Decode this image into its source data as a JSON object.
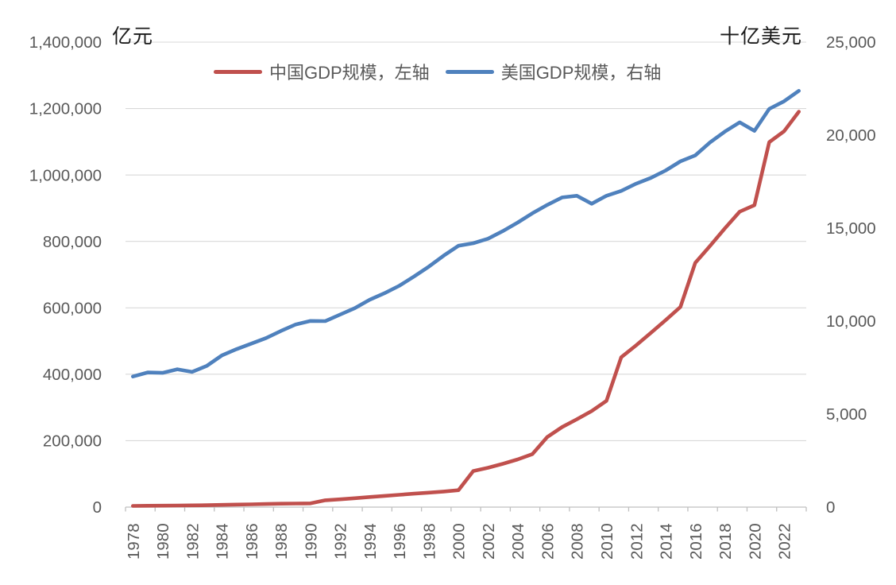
{
  "chart_data": {
    "type": "line",
    "title": "",
    "x": [
      1978,
      1979,
      1980,
      1981,
      1982,
      1983,
      1984,
      1985,
      1986,
      1987,
      1988,
      1989,
      1990,
      1991,
      1992,
      1993,
      1994,
      1995,
      1996,
      1997,
      1998,
      1999,
      2000,
      2001,
      2002,
      2003,
      2004,
      2005,
      2006,
      2007,
      2008,
      2009,
      2010,
      2011,
      2012,
      2013,
      2014,
      2015,
      2016,
      2017,
      2018,
      2019,
      2020,
      2021,
      2022,
      2023
    ],
    "series": [
      {
        "name": "中国GDP规模，左轴",
        "axis": "left",
        "color": "#C0504D",
        "values": [
          3679,
          3958,
          4267,
          4822,
          5256,
          5824,
          6709,
          7608,
          8285,
          9254,
          10291,
          10723,
          11141,
          20628,
          23557,
          26831,
          30319,
          33654,
          36986,
          40389,
          43539,
          46892,
          50878,
          108603,
          118486,
          130335,
          143499,
          159715,
          211109,
          241086,
          264471,
          289331,
          320001,
          451270,
          486921,
          524901,
          563218,
          602643,
          735700,
          786463,
          839157,
          889506,
          909075,
          1098707,
          1131668,
          1190515
        ]
      },
      {
        "name": "美国GDP规模，右轴",
        "axis": "right",
        "color": "#4F81BD",
        "values": [
          7020,
          7240,
          7220,
          7410,
          7270,
          7600,
          8150,
          8490,
          8790,
          9090,
          9470,
          9820,
          10010,
          10000,
          10350,
          10700,
          11150,
          11500,
          11900,
          12400,
          12930,
          13520,
          14050,
          14190,
          14430,
          14840,
          15300,
          15800,
          16250,
          16650,
          16740,
          16310,
          16740,
          17000,
          17390,
          17700,
          18100,
          18590,
          18910,
          19610,
          20190,
          20690,
          20230,
          21410,
          21820,
          22380
        ]
      }
    ],
    "left_axis": {
      "label": "亿元",
      "min": 0,
      "max": 1400000,
      "step": 200000,
      "tick_labels": [
        "0",
        "200,000",
        "400,000",
        "600,000",
        "800,000",
        "1,000,000",
        "1,200,000",
        "1,400,000"
      ]
    },
    "right_axis": {
      "label": "十亿美元",
      "min": 0,
      "max": 25000,
      "step": 5000,
      "tick_labels": [
        "0",
        "5,000",
        "10,000",
        "15,000",
        "20,000",
        "25,000"
      ]
    },
    "x_tick_labels": [
      "1978",
      "1980",
      "1982",
      "1984",
      "1986",
      "1988",
      "1990",
      "1992",
      "1994",
      "1996",
      "1998",
      "2000",
      "2002",
      "2004",
      "2006",
      "2008",
      "2010",
      "2012",
      "2014",
      "2016",
      "2018",
      "2020",
      "2022"
    ],
    "grid": "horizontal",
    "legend_position": "top",
    "colors": {
      "gridline": "#D9D9D9",
      "axis_line": "#BFBFBF",
      "tick_label": "#595959",
      "legend_text": "#595959",
      "unit_label": "#1a1a1a"
    }
  }
}
